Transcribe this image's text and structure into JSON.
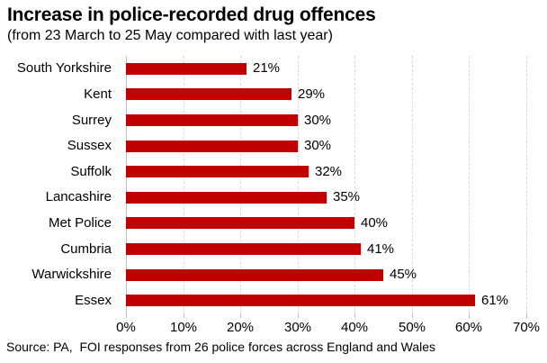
{
  "header": {
    "title": "Increase in police-recorded drug offences",
    "subtitle": "(from 23 March to 25 May compared with last year)"
  },
  "footer": {
    "source": "Source: PA,  FOI responses from 26 police forces across England and Wales"
  },
  "chart_data": {
    "type": "bar",
    "orientation": "horizontal",
    "title": "Increase in police-recorded drug offences",
    "subtitle": "(from 23 March to 25 May compared with last year)",
    "categories": [
      "South Yorkshire",
      "Kent",
      "Surrey",
      "Sussex",
      "Suffolk",
      "Lancashire",
      "Met Police",
      "Cumbria",
      "Warwickshire",
      "Essex"
    ],
    "values": [
      21,
      29,
      30,
      30,
      32,
      35,
      40,
      41,
      45,
      61
    ],
    "value_labels": [
      "21%",
      "29%",
      "30%",
      "30%",
      "32%",
      "35%",
      "40%",
      "41%",
      "45%",
      "61%"
    ],
    "xlabel": "",
    "ylabel": "",
    "xlim": [
      0,
      70
    ],
    "x_ticks": [
      0,
      10,
      20,
      30,
      40,
      50,
      60,
      70
    ],
    "x_tick_labels": [
      "0%",
      "10%",
      "20%",
      "30%",
      "40%",
      "50%",
      "60%",
      "70%"
    ],
    "grid": "vertical-dashed",
    "legend": "none",
    "bar_color": "#C00000",
    "gridline_color": "#D9D9D9",
    "axis_color": "#BFBFBF",
    "source": "Source: PA,  FOI responses from 26 police forces across England and Wales"
  }
}
